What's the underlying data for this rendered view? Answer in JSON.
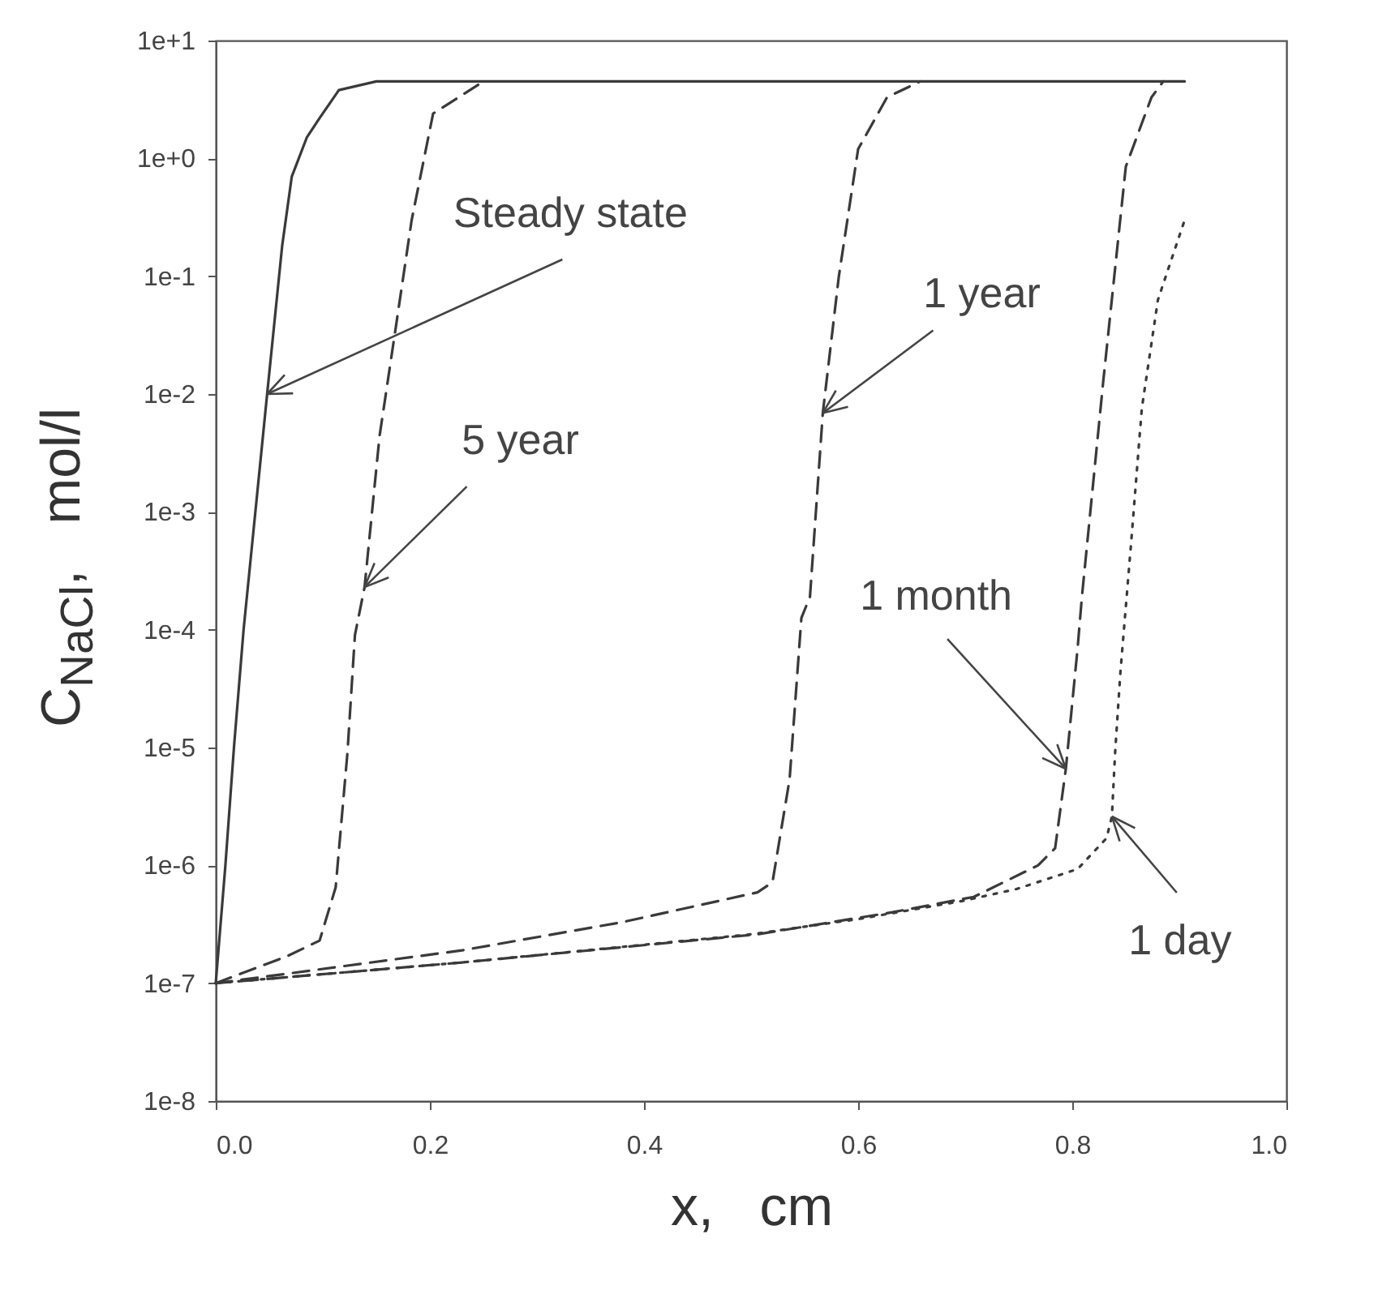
{
  "chart_data": {
    "type": "line",
    "xlabel": "x,   cm",
    "ylabel": "C$_{NaCl}$,   mol/l",
    "log": true,
    "xlim": [
      0,
      1
    ],
    "ylim": [
      1e-08,
      10
    ],
    "xticks": [
      {
        "value": 0,
        "label": "0.0"
      },
      {
        "value": 0.2,
        "label": "0.2"
      },
      {
        "value": 0.4,
        "label": "0.4"
      },
      {
        "value": 0.6,
        "label": "0.6"
      },
      {
        "value": 0.8,
        "label": "0.8"
      },
      {
        "value": 1,
        "label": "1.0"
      }
    ],
    "yticks": [
      {
        "value": 1e-08,
        "label": "1e-8"
      },
      {
        "value": 1e-07,
        "label": "1e-7"
      },
      {
        "value": 1e-06,
        "label": "1e-6"
      },
      {
        "value": 1e-05,
        "label": "1e-5"
      },
      {
        "value": 0.0001,
        "label": "1e-4"
      },
      {
        "value": 0.001,
        "label": "1e-3"
      },
      {
        "value": 0.01,
        "label": "1e-2"
      },
      {
        "value": 0.1,
        "label": "1e-1"
      },
      {
        "value": 1,
        "label": "1e+0"
      },
      {
        "value": 10,
        "label": "1e+1"
      }
    ],
    "series": [
      {
        "color": "#3a3a3a",
        "line_style": "solid",
        "x": [
          0,
          0.009,
          0.017,
          0.026,
          0.037,
          0.048,
          0.062,
          0.071,
          0.085,
          0.097,
          0.115,
          0.15,
          0.905
        ],
        "values": [
          1e-07,
          1e-06,
          1e-05,
          0.0001,
          0.001,
          0.01,
          0.18,
          0.7,
          1.5,
          2.2,
          3.8,
          4.5,
          4.5
        ]
      },
      {
        "color": "#3a3a3a",
        "line_style": "dashed",
        "x": [
          0,
          0.067,
          0.097,
          0.112,
          0.123,
          0.13,
          0.139,
          0.153,
          0.168,
          0.183,
          0.203,
          0.25
        ],
        "values": [
          1e-07,
          1.7e-07,
          2.3e-07,
          6.5e-07,
          9e-06,
          9e-05,
          0.00023,
          0.0044,
          0.036,
          0.3,
          2.4,
          4.5
        ]
      },
      {
        "color": "#3a3a3a",
        "line_style": "dashed",
        "x": [
          0,
          0.23,
          0.38,
          0.506,
          0.52,
          0.536,
          0.547,
          0.555,
          0.567,
          0.582,
          0.6,
          0.627,
          0.658
        ],
        "values": [
          1e-07,
          1.9e-07,
          3.3e-07,
          5.9e-07,
          7.2e-07,
          5.4e-06,
          0.000126,
          0.00019,
          0.0069,
          0.1,
          1.2,
          3.3,
          4.5
        ]
      },
      {
        "color": "#3a3a3a",
        "line_style": "dashed",
        "x": [
          0,
          0.23,
          0.506,
          0.632,
          0.708,
          0.768,
          0.784,
          0.794,
          0.805,
          0.809,
          0.829,
          0.85,
          0.874,
          0.885
        ],
        "values": [
          1e-07,
          1.5e-07,
          2.6e-07,
          4e-07,
          5.4e-07,
          1e-06,
          1.4e-06,
          6.6e-06,
          7e-05,
          0.00019,
          0.013,
          0.85,
          3.3,
          4.5
        ]
      },
      {
        "color": "#3a3a3a",
        "line_style": "dotted",
        "x": [
          0,
          0.23,
          0.5,
          0.6,
          0.698,
          0.748,
          0.805,
          0.832,
          0.837,
          0.84,
          0.845,
          0.855,
          0.865,
          0.88,
          0.905
        ],
        "values": [
          1e-07,
          1.5e-07,
          2.6e-07,
          3.5e-07,
          5e-07,
          6.3e-07,
          9.3e-07,
          1.7e-06,
          2.6e-06,
          9e-06,
          4.4e-05,
          0.00055,
          0.0076,
          0.063,
          0.3
        ]
      }
    ],
    "annotations": [
      {
        "text": "Steady state",
        "x": 0.048,
        "y": 0.01
      },
      {
        "text": "5 year",
        "x": 0.139,
        "y": 0.00023
      },
      {
        "text": "1 year",
        "x": 0.567,
        "y": 0.0069
      },
      {
        "text": "1 month",
        "x": 0.794,
        "y": 6.6e-06
      },
      {
        "text": "1 day",
        "x": 0.837,
        "y": 2.6e-06
      }
    ]
  }
}
